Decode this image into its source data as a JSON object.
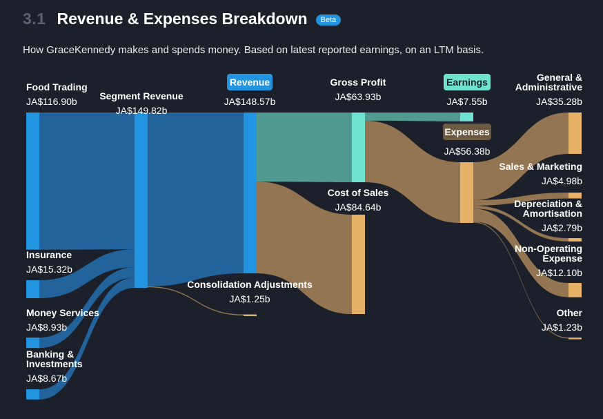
{
  "header": {
    "section_number": "3.1",
    "title": "Revenue & Expenses Breakdown",
    "badge": "Beta",
    "subtitle": "How GraceKennedy makes and spends money. Based on latest reported earnings, on an LTM basis."
  },
  "colors": {
    "background": "#1b202b",
    "revenue_node": "#2394df",
    "revenue_link": "#21639a",
    "profit_node": "#6fe3d0",
    "profit_link": "#509a90",
    "expense_node": "#e6b267",
    "expense_link": "#937551",
    "expenses_pill": "#6e5a43"
  },
  "chart_data": {
    "type": "sankey",
    "currency": "JA$",
    "unit": "b",
    "nodes": [
      {
        "id": "food_trading",
        "label": "Food Trading",
        "value": 116.9,
        "display": "JA$116.90b",
        "kind": "revenue"
      },
      {
        "id": "insurance",
        "label": "Insurance",
        "value": 15.32,
        "display": "JA$15.32b",
        "kind": "revenue"
      },
      {
        "id": "money_services",
        "label": "Money Services",
        "value": 8.93,
        "display": "JA$8.93b",
        "kind": "revenue"
      },
      {
        "id": "banking",
        "label": "Banking & Investments",
        "label_lines": [
          "Banking &",
          "Investments"
        ],
        "value": 8.67,
        "display": "JA$8.67b",
        "kind": "revenue"
      },
      {
        "id": "segment_revenue",
        "label": "Segment Revenue",
        "value": 149.82,
        "display": "JA$149.82b",
        "kind": "revenue"
      },
      {
        "id": "revenue",
        "label": "Revenue",
        "value": 148.57,
        "display": "JA$148.57b",
        "kind": "revenue",
        "pill": true
      },
      {
        "id": "consolidation",
        "label": "Consolidation Adjustments",
        "value": 1.25,
        "display": "JA$1.25b",
        "kind": "expense"
      },
      {
        "id": "gross_profit",
        "label": "Gross Profit",
        "value": 63.93,
        "display": "JA$63.93b",
        "kind": "profit"
      },
      {
        "id": "cost_of_sales",
        "label": "Cost of Sales",
        "value": 84.64,
        "display": "JA$84.64b",
        "kind": "expense"
      },
      {
        "id": "earnings",
        "label": "Earnings",
        "value": 7.55,
        "display": "JA$7.55b",
        "kind": "profit",
        "pill": true
      },
      {
        "id": "expenses",
        "label": "Expenses",
        "value": 56.38,
        "display": "JA$56.38b",
        "kind": "expense",
        "pill": true
      },
      {
        "id": "general_admin",
        "label": "General & Administrative",
        "label_lines": [
          "General &",
          "Administrative"
        ],
        "value": 35.28,
        "display": "JA$35.28b",
        "kind": "expense"
      },
      {
        "id": "sales_marketing",
        "label": "Sales & Marketing",
        "value": 4.98,
        "display": "JA$4.98b",
        "kind": "expense"
      },
      {
        "id": "depreciation",
        "label": "Depreciation & Amortisation",
        "label_lines": [
          "Depreciation &",
          "Amortisation"
        ],
        "value": 2.79,
        "display": "JA$2.79b",
        "kind": "expense"
      },
      {
        "id": "non_operating",
        "label": "Non-Operating Expense",
        "label_lines": [
          "Non-Operating",
          "Expense"
        ],
        "value": 12.1,
        "display": "JA$12.10b",
        "kind": "expense"
      },
      {
        "id": "other",
        "label": "Other",
        "value": 1.23,
        "display": "JA$1.23b",
        "kind": "expense"
      }
    ],
    "links": [
      {
        "source": "food_trading",
        "target": "segment_revenue",
        "value": 116.9
      },
      {
        "source": "insurance",
        "target": "segment_revenue",
        "value": 15.32
      },
      {
        "source": "money_services",
        "target": "segment_revenue",
        "value": 8.93
      },
      {
        "source": "banking",
        "target": "segment_revenue",
        "value": 8.67
      },
      {
        "source": "segment_revenue",
        "target": "revenue",
        "value": 148.57
      },
      {
        "source": "segment_revenue",
        "target": "consolidation",
        "value": 1.25
      },
      {
        "source": "revenue",
        "target": "gross_profit",
        "value": 63.93
      },
      {
        "source": "revenue",
        "target": "cost_of_sales",
        "value": 84.64
      },
      {
        "source": "gross_profit",
        "target": "earnings",
        "value": 7.55
      },
      {
        "source": "gross_profit",
        "target": "expenses",
        "value": 56.38
      },
      {
        "source": "expenses",
        "target": "general_admin",
        "value": 35.28
      },
      {
        "source": "expenses",
        "target": "sales_marketing",
        "value": 4.98
      },
      {
        "source": "expenses",
        "target": "depreciation",
        "value": 2.79
      },
      {
        "source": "expenses",
        "target": "non_operating",
        "value": 12.1
      },
      {
        "source": "expenses",
        "target": "other",
        "value": 1.23
      }
    ]
  }
}
